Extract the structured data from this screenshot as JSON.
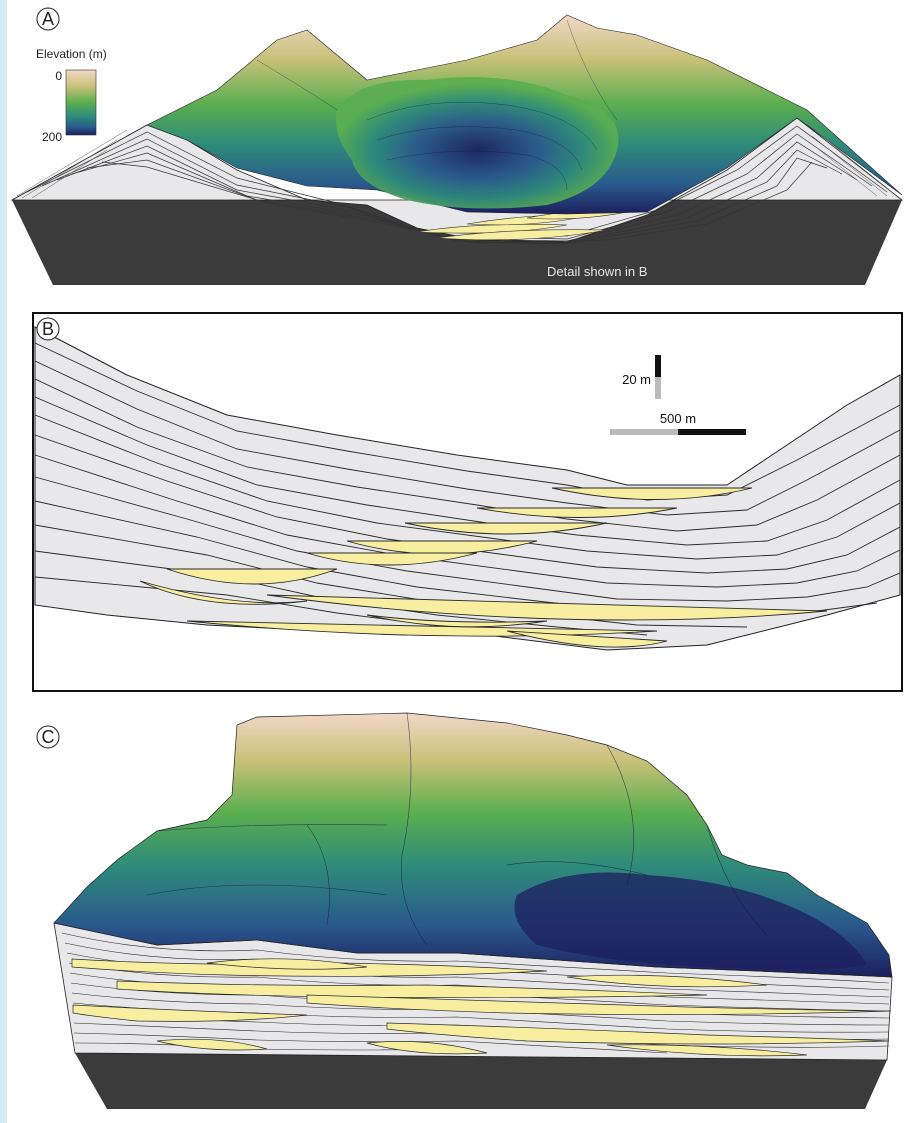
{
  "panels": {
    "a": {
      "letter": "A",
      "detail_caption": "Detail shown in B"
    },
    "b": {
      "letter": "B"
    },
    "c": {
      "letter": "C"
    }
  },
  "legend": {
    "title": "Elevation (m)",
    "top_value": "0",
    "bottom_value": "200",
    "colors": [
      "#f1d7c6",
      "#c9c17a",
      "#5aae4f",
      "#2e8b7a",
      "#2a5a8c",
      "#1d1f5e"
    ]
  },
  "scale_bar": {
    "vertical_label": "20 m",
    "horizontal_label": "500 m"
  },
  "colors": {
    "sediment_fill": "#e8e8ea",
    "channel_fill": "#f8ee9f",
    "base_block": "#3b3b3b",
    "line": "#222222"
  }
}
